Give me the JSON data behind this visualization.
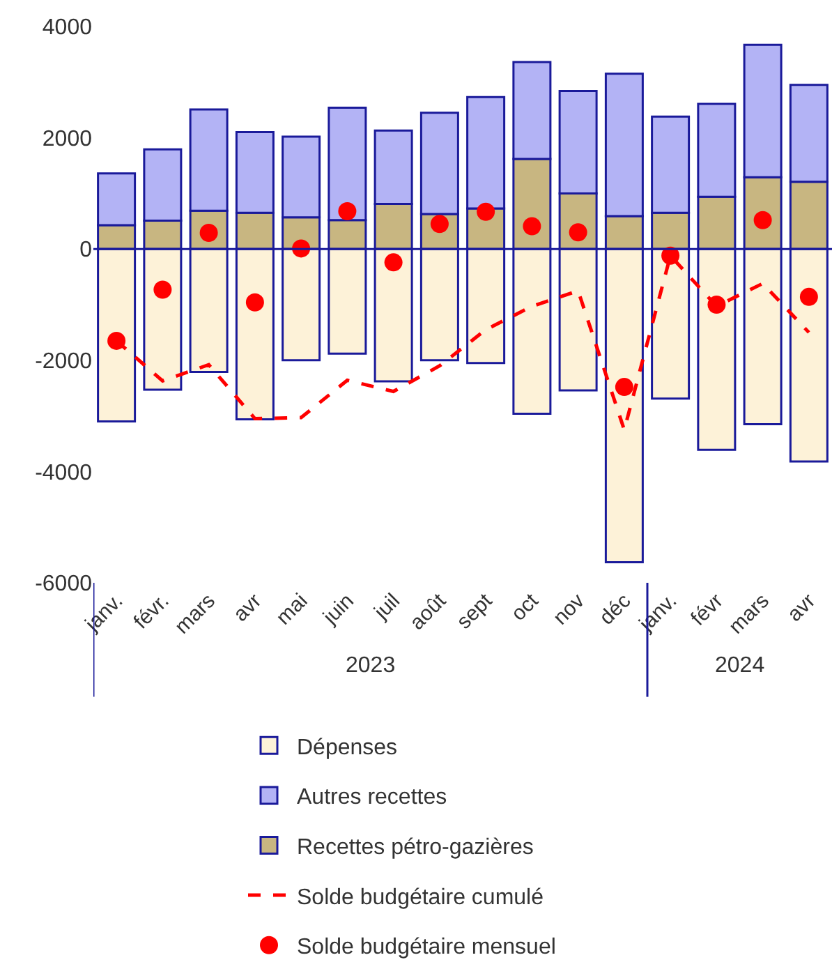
{
  "chart_data": {
    "type": "bar",
    "stacked": true,
    "categories": [
      "janv.",
      "févr.",
      "mars",
      "avr",
      "mai",
      "juin",
      "juil",
      "août",
      "sept",
      "oct",
      "nov",
      "déc",
      "janv.",
      "févr",
      "mars",
      "avr"
    ],
    "annotations": [
      "2023",
      "2024"
    ],
    "series": [
      {
        "name": "Recettes pétro-gazières",
        "color": "#c8b681",
        "values": [
          430,
          510,
          690,
          650,
          570,
          520,
          810,
          630,
          730,
          1620,
          1000,
          590,
          650,
          940,
          1290,
          1210
        ]
      },
      {
        "name": "Autres recettes",
        "color": "#b3b3f5",
        "values": [
          930,
          1280,
          1820,
          1450,
          1450,
          2020,
          1320,
          1820,
          2000,
          1740,
          1840,
          2560,
          1730,
          1670,
          2380,
          1740
        ]
      },
      {
        "name": "Dépenses",
        "color": "#fdf2d8",
        "values": [
          -3100,
          -2530,
          -2210,
          -3060,
          -2000,
          -1880,
          -2380,
          -2000,
          -2050,
          -2960,
          -2540,
          -5630,
          -2690,
          -3610,
          -3150,
          -3820
        ]
      },
      {
        "name": "Solde budgétaire cumulé",
        "type": "line",
        "line_style": "dashed",
        "marker": "none",
        "color": "#ff0000",
        "values": [
          -1650,
          -2370,
          -2080,
          -3050,
          -3030,
          -2360,
          -2560,
          -2100,
          -1450,
          -1030,
          -750,
          -3250,
          -120,
          -1030,
          -620,
          -1500
        ]
      },
      {
        "name": "Solde budgétaire mensuel",
        "type": "scatter",
        "marker": "circle",
        "color": "#ff0000",
        "values": [
          -1650,
          -730,
          290,
          -960,
          10,
          680,
          -240,
          450,
          670,
          410,
          300,
          -2480,
          -120,
          -1000,
          520,
          -860
        ]
      }
    ],
    "ref_lines": [
      {
        "axis": "y",
        "value": 0,
        "color": "#1a1a9a"
      }
    ],
    "ylim": [
      -6000,
      4000
    ],
    "yticks": [
      -6000,
      -4000,
      -2000,
      0,
      2000,
      4000
    ],
    "grid": false,
    "legend": "bottom"
  }
}
